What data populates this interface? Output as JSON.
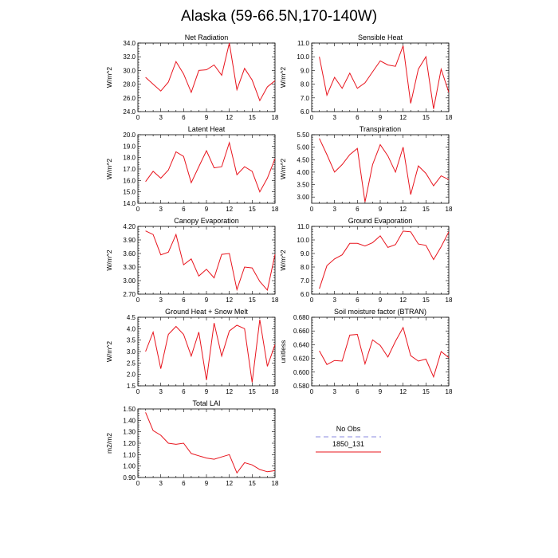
{
  "title": "Alaska (59-66.5N,170-140W)",
  "colors": {
    "model": "#e8141d",
    "obs": "#a0a0e8",
    "axis": "#000000"
  },
  "legend": {
    "items": [
      {
        "label": "No Obs",
        "style": "dashed",
        "color": "#a0a0e8"
      },
      {
        "label": "1850_131",
        "style": "solid",
        "color": "#e8141d"
      }
    ]
  },
  "chart_data": [
    {
      "type": "line",
      "title": "Net Radiation",
      "ylabel": "W/m^2",
      "xlim": [
        0,
        18
      ],
      "xticks": [
        0,
        3,
        6,
        9,
        12,
        15,
        18
      ],
      "ylim": [
        24,
        34
      ],
      "yticks": [
        24,
        26,
        28,
        30,
        32,
        34
      ],
      "ytick_labels": [
        "24.0",
        "26.0",
        "28.0",
        "30.0",
        "32.0",
        "34.0"
      ],
      "series": [
        {
          "name": "1850_131",
          "x": [
            1,
            2,
            3,
            4,
            5,
            6,
            7,
            8,
            9,
            10,
            11,
            12,
            13,
            14,
            15,
            16,
            17,
            18
          ],
          "y": [
            29.0,
            28.0,
            27.0,
            28.3,
            31.3,
            29.5,
            26.8,
            30.0,
            30.1,
            30.8,
            29.3,
            34.2,
            27.2,
            30.3,
            28.6,
            25.6,
            27.6,
            28.5
          ]
        }
      ]
    },
    {
      "type": "line",
      "title": "Sensible Heat",
      "ylabel": "W/m^2",
      "xlim": [
        0,
        18
      ],
      "xticks": [
        0,
        3,
        6,
        9,
        12,
        15,
        18
      ],
      "ylim": [
        6,
        11
      ],
      "yticks": [
        6,
        7,
        8,
        9,
        10,
        11
      ],
      "ytick_labels": [
        "6.0",
        "7.0",
        "8.0",
        "9.0",
        "10.0",
        "11.0"
      ],
      "series": [
        {
          "name": "1850_131",
          "x": [
            1,
            2,
            3,
            4,
            5,
            6,
            7,
            8,
            9,
            10,
            11,
            12,
            13,
            14,
            15,
            16,
            17,
            18
          ],
          "y": [
            10.0,
            7.2,
            8.5,
            7.7,
            8.8,
            7.7,
            8.1,
            8.9,
            9.7,
            9.4,
            9.3,
            10.8,
            6.6,
            9.1,
            10.0,
            6.2,
            9.1,
            7.4
          ]
        }
      ]
    },
    {
      "type": "line",
      "title": "Latent Heat",
      "ylabel": "W/m^2",
      "xlim": [
        0,
        18
      ],
      "xticks": [
        0,
        3,
        6,
        9,
        12,
        15,
        18
      ],
      "ylim": [
        14,
        20
      ],
      "yticks": [
        14,
        15,
        16,
        17,
        18,
        19,
        20
      ],
      "ytick_labels": [
        "14.0",
        "15.0",
        "16.0",
        "17.0",
        "18.0",
        "19.0",
        "20.0"
      ],
      "series": [
        {
          "name": "1850_131",
          "x": [
            1,
            2,
            3,
            4,
            5,
            6,
            7,
            8,
            9,
            10,
            11,
            12,
            13,
            14,
            15,
            16,
            17,
            18
          ],
          "y": [
            15.9,
            16.8,
            16.2,
            16.9,
            18.5,
            18.1,
            15.8,
            17.2,
            18.6,
            17.1,
            17.2,
            19.3,
            16.5,
            17.2,
            16.8,
            15.0,
            16.2,
            17.9
          ]
        }
      ]
    },
    {
      "type": "line",
      "title": "Transpiration",
      "ylabel": "W/m^2",
      "xlim": [
        0,
        18
      ],
      "xticks": [
        0,
        3,
        6,
        9,
        12,
        15,
        18
      ],
      "ylim": [
        2.75,
        5.5
      ],
      "yticks": [
        3.0,
        3.5,
        4.0,
        4.5,
        5.0,
        5.5
      ],
      "ytick_labels": [
        "3.00",
        "3.50",
        "4.00",
        "4.50",
        "5.00",
        "5.50"
      ],
      "series": [
        {
          "name": "1850_131",
          "x": [
            1,
            2,
            3,
            4,
            5,
            6,
            7,
            8,
            9,
            10,
            11,
            12,
            13,
            14,
            15,
            16,
            17,
            18
          ],
          "y": [
            5.35,
            4.7,
            4.0,
            4.3,
            4.7,
            4.95,
            2.8,
            4.3,
            5.1,
            4.65,
            4.0,
            5.0,
            3.1,
            4.25,
            3.95,
            3.45,
            3.85,
            3.7
          ]
        }
      ]
    },
    {
      "type": "line",
      "title": "Canopy Evaporation",
      "ylabel": "W/m^2",
      "xlim": [
        0,
        18
      ],
      "xticks": [
        0,
        3,
        6,
        9,
        12,
        15,
        18
      ],
      "ylim": [
        2.7,
        4.2
      ],
      "yticks": [
        2.7,
        3.0,
        3.3,
        3.6,
        3.9,
        4.2
      ],
      "ytick_labels": [
        "2.70",
        "3.00",
        "3.30",
        "3.60",
        "3.90",
        "4.20"
      ],
      "series": [
        {
          "name": "1850_131",
          "x": [
            1,
            2,
            3,
            4,
            5,
            6,
            7,
            8,
            9,
            10,
            11,
            12,
            13,
            14,
            15,
            16,
            17,
            18
          ],
          "y": [
            4.1,
            4.02,
            3.57,
            3.63,
            4.02,
            3.35,
            3.48,
            3.1,
            3.25,
            3.06,
            3.58,
            3.6,
            2.8,
            3.3,
            3.28,
            2.98,
            2.79,
            3.58
          ]
        }
      ]
    },
    {
      "type": "line",
      "title": "Ground Evaporation",
      "ylabel": "W/m^2",
      "xlim": [
        0,
        18
      ],
      "xticks": [
        0,
        3,
        6,
        9,
        12,
        15,
        18
      ],
      "ylim": [
        6,
        11
      ],
      "yticks": [
        6,
        7,
        8,
        9,
        10,
        11
      ],
      "ytick_labels": [
        "6.0",
        "7.0",
        "8.0",
        "9.0",
        "10.0",
        "11.0"
      ],
      "series": [
        {
          "name": "1850_131",
          "x": [
            1,
            2,
            3,
            4,
            5,
            6,
            7,
            8,
            9,
            10,
            11,
            12,
            13,
            14,
            15,
            16,
            17,
            18
          ],
          "y": [
            6.4,
            8.1,
            8.6,
            8.9,
            9.75,
            9.75,
            9.55,
            9.8,
            10.3,
            9.45,
            9.65,
            10.65,
            10.6,
            9.7,
            9.6,
            8.55,
            9.5,
            10.6
          ]
        }
      ]
    },
    {
      "type": "line",
      "title": "Ground Heat + Snow Melt",
      "ylabel": "W/m^2",
      "xlim": [
        0,
        18
      ],
      "xticks": [
        0,
        3,
        6,
        9,
        12,
        15,
        18
      ],
      "ylim": [
        1.5,
        4.5
      ],
      "yticks": [
        1.5,
        2.0,
        2.5,
        3.0,
        3.5,
        4.0,
        4.5
      ],
      "ytick_labels": [
        "1.5",
        "2.0",
        "2.5",
        "3.0",
        "3.5",
        "4.0",
        "4.5"
      ],
      "series": [
        {
          "name": "1850_131",
          "x": [
            1,
            2,
            3,
            4,
            5,
            6,
            7,
            8,
            9,
            10,
            11,
            12,
            13,
            14,
            15,
            16,
            17,
            18
          ],
          "y": [
            3.0,
            3.85,
            2.25,
            3.75,
            4.1,
            3.75,
            2.8,
            3.85,
            1.75,
            4.25,
            2.8,
            3.9,
            4.15,
            4.0,
            1.65,
            4.4,
            2.35,
            3.3
          ]
        }
      ]
    },
    {
      "type": "line",
      "title": "Soil moisture factor (BTRAN)",
      "ylabel": "unitless",
      "xlim": [
        0,
        18
      ],
      "xticks": [
        0,
        3,
        6,
        9,
        12,
        15,
        18
      ],
      "ylim": [
        0.58,
        0.68
      ],
      "yticks": [
        0.58,
        0.6,
        0.62,
        0.64,
        0.66,
        0.68
      ],
      "ytick_labels": [
        "0.580",
        "0.600",
        "0.620",
        "0.640",
        "0.660",
        "0.680"
      ],
      "series": [
        {
          "name": "1850_131",
          "x": [
            1,
            2,
            3,
            4,
            5,
            6,
            7,
            8,
            9,
            10,
            11,
            12,
            13,
            14,
            15,
            16,
            17,
            18
          ],
          "y": [
            0.631,
            0.611,
            0.617,
            0.616,
            0.654,
            0.655,
            0.612,
            0.647,
            0.639,
            0.622,
            0.645,
            0.665,
            0.624,
            0.616,
            0.619,
            0.593,
            0.63,
            0.621
          ]
        }
      ]
    },
    {
      "type": "line",
      "title": "Total LAI",
      "ylabel": "m2/m2",
      "xlim": [
        0,
        18
      ],
      "xticks": [
        0,
        3,
        6,
        9,
        12,
        15,
        18
      ],
      "ylim": [
        0.9,
        1.5
      ],
      "yticks": [
        0.9,
        1.0,
        1.1,
        1.2,
        1.3,
        1.4,
        1.5
      ],
      "ytick_labels": [
        "0.90",
        "1.00",
        "1.10",
        "1.20",
        "1.30",
        "1.40",
        "1.50"
      ],
      "series": [
        {
          "name": "1850_131",
          "x": [
            1,
            2,
            3,
            4,
            5,
            6,
            7,
            8,
            9,
            10,
            11,
            12,
            13,
            14,
            15,
            16,
            17,
            18
          ],
          "y": [
            1.47,
            1.31,
            1.27,
            1.2,
            1.19,
            1.2,
            1.11,
            1.09,
            1.07,
            1.06,
            1.08,
            1.1,
            0.94,
            1.03,
            1.01,
            0.97,
            0.95,
            0.96
          ]
        }
      ]
    }
  ]
}
